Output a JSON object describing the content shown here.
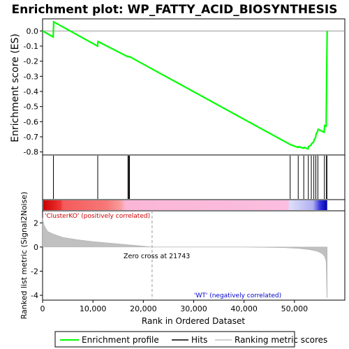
{
  "title": "Enrichment plot: WP_FATTY_ACID_BIOSYNTHESIS",
  "chart_data": [
    {
      "type": "line",
      "name": "es-panel",
      "ylabel": "Enrichment score (ES)",
      "ylim": [
        -0.82,
        0.08
      ],
      "yticks": [
        0.0,
        -0.1,
        -0.2,
        -0.3,
        -0.4,
        -0.5,
        -0.6,
        -0.7,
        -0.8
      ],
      "ytick_labels": [
        "0.0",
        "-0.1",
        "-0.2",
        "-0.3",
        "-0.4",
        "-0.5",
        "-0.6",
        "-0.7",
        "-0.8"
      ],
      "series": [
        {
          "name": "Enrichment profile",
          "color": "#00ff00",
          "x": [
            0,
            2100,
            2200,
            10900,
            11000,
            16900,
            17000,
            17200,
            17300,
            49100,
            49200,
            50700,
            50800,
            51800,
            51900,
            52700,
            52800,
            53300,
            53400,
            53800,
            53900,
            54200,
            54300,
            54600,
            54700,
            55900,
            56000,
            56300,
            56400,
            56500
          ],
          "y": [
            0.0,
            -0.04,
            0.06,
            -0.1,
            -0.07,
            -0.17,
            -0.168,
            -0.172,
            -0.17,
            -0.75,
            -0.752,
            -0.77,
            -0.765,
            -0.775,
            -0.77,
            -0.78,
            -0.765,
            -0.755,
            -0.745,
            -0.735,
            -0.72,
            -0.705,
            -0.68,
            -0.665,
            -0.65,
            -0.67,
            -0.625,
            -0.63,
            -0.3,
            0.0
          ]
        }
      ]
    },
    {
      "type": "hits",
      "name": "hits-panel",
      "hits_x": [
        2150,
        10950,
        16950,
        17100,
        17250,
        49150,
        50750,
        51850,
        52750,
        53350,
        53850,
        54250,
        54650,
        55950,
        56350,
        56450
      ]
    },
    {
      "type": "area",
      "name": "ranked-metric-panel",
      "xlabel": "Rank in Ordered Dataset",
      "ylabel": "Ranked list metric (Signal2Noise)",
      "xlim": [
        0,
        60000
      ],
      "ylim": [
        -4.4,
        3.0
      ],
      "xticks": [
        0,
        10000,
        20000,
        30000,
        40000,
        50000
      ],
      "xtick_labels": [
        "0",
        "10,000",
        "20,000",
        "30,000",
        "40,000",
        "50,000"
      ],
      "yticks": [
        2,
        0,
        -2,
        -4
      ],
      "ytick_labels": [
        "2",
        "0",
        "-2",
        "-4"
      ],
      "x": [
        0,
        300,
        1000,
        2000,
        4000,
        7000,
        10000,
        14000,
        18000,
        21743,
        30000,
        40000,
        48000,
        51000,
        53000,
        54500,
        55500,
        56000,
        56300,
        56450,
        56500
      ],
      "y": [
        2.4,
        1.8,
        1.3,
        1.1,
        0.8,
        0.6,
        0.45,
        0.3,
        0.15,
        0.0,
        0.0,
        0.0,
        -0.05,
        -0.12,
        -0.22,
        -0.35,
        -0.55,
        -0.8,
        -1.2,
        -4.2,
        -4.2
      ],
      "annotations": {
        "positive": "'ClusterKO' (positively correlated)",
        "zero_cross": "Zero cross at 21743",
        "negative": "'WT' (negatively correlated)"
      },
      "zero_cross_x": 21743,
      "positive_color": "#cc0000",
      "negative_color": "#0000cc"
    }
  ],
  "legend": {
    "items": [
      {
        "label": "Enrichment profile",
        "color": "#00ff00"
      },
      {
        "label": "Hits",
        "color": "#000000"
      },
      {
        "label": "Ranking metric scores",
        "color": "#c0c0c0"
      }
    ]
  }
}
